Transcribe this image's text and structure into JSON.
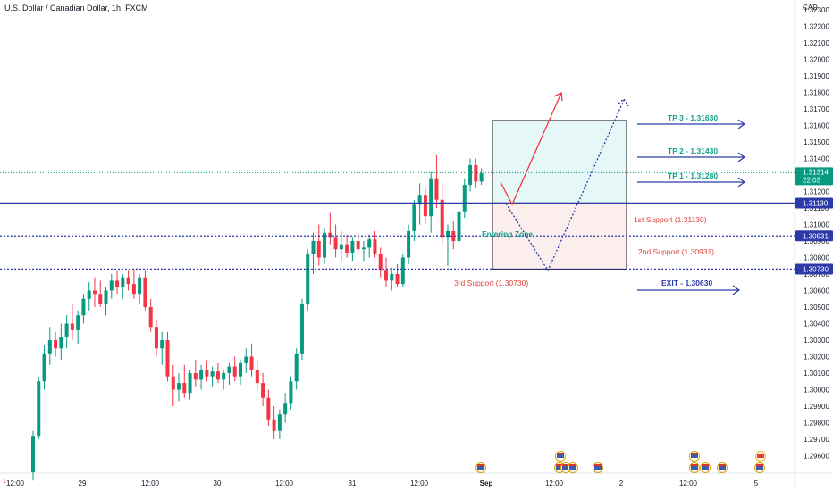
{
  "header": {
    "title": "U.S. Dollar / Canadian Dollar, 1h, FXCM",
    "currency": "CAD"
  },
  "chart_data": {
    "type": "candlestick",
    "title": "U.S. Dollar / Canadian Dollar, 1h, FXCM",
    "ylim": [
      1.2955,
      1.3235
    ],
    "y_ticks": [
      "1.29600",
      "1.29700",
      "1.29800",
      "1.29900",
      "1.30000",
      "1.30100",
      "1.30200",
      "1.30300",
      "1.30400",
      "1.30500",
      "1.30600",
      "1.30700",
      "1.30800",
      "1.30900",
      "1.31000",
      "1.31100",
      "1.31200",
      "1.31300",
      "1.31400",
      "1.31500",
      "1.31600",
      "1.31700",
      "1.31800",
      "1.31900",
      "1.32000",
      "1.32100",
      "1.32200",
      "1.32300"
    ],
    "x_ticks": [
      "12:00",
      "29",
      "12:00",
      "30",
      "12:00",
      "31",
      "12:00",
      "Sep",
      "12:00",
      "2",
      "12:00",
      "5"
    ],
    "candles": [
      [
        1.295,
        1.2975,
        1.2945,
        1.2972
      ],
      [
        1.2972,
        1.3008,
        1.297,
        1.3005
      ],
      [
        1.3005,
        1.3027,
        1.3,
        1.3022
      ],
      [
        1.3022,
        1.3038,
        1.3015,
        1.303
      ],
      [
        1.303,
        1.3035,
        1.302,
        1.3025
      ],
      [
        1.3025,
        1.304,
        1.3018,
        1.3032
      ],
      [
        1.3032,
        1.3045,
        1.3025,
        1.304
      ],
      [
        1.304,
        1.3052,
        1.303,
        1.3036
      ],
      [
        1.3036,
        1.3048,
        1.3028,
        1.3045
      ],
      [
        1.3045,
        1.3058,
        1.304,
        1.3055
      ],
      [
        1.3055,
        1.3065,
        1.3048,
        1.306
      ],
      [
        1.306,
        1.3068,
        1.305,
        1.3058
      ],
      [
        1.3058,
        1.3066,
        1.305,
        1.3052
      ],
      [
        1.3052,
        1.3062,
        1.3045,
        1.306
      ],
      [
        1.306,
        1.307,
        1.3055,
        1.3066
      ],
      [
        1.3066,
        1.3072,
        1.3058,
        1.3062
      ],
      [
        1.3062,
        1.307,
        1.3055,
        1.3068
      ],
      [
        1.3068,
        1.3072,
        1.306,
        1.3064
      ],
      [
        1.3064,
        1.3073,
        1.3055,
        1.3058
      ],
      [
        1.3058,
        1.307,
        1.3052,
        1.3068
      ],
      [
        1.3068,
        1.3072,
        1.3048,
        1.305
      ],
      [
        1.305,
        1.3055,
        1.3035,
        1.3038
      ],
      [
        1.3038,
        1.3042,
        1.302,
        1.3025
      ],
      [
        1.3025,
        1.3035,
        1.3015,
        1.303
      ],
      [
        1.303,
        1.3035,
        1.3005,
        1.3008
      ],
      [
        1.3008,
        1.3015,
        1.299,
        1.3
      ],
      [
        1.3,
        1.301,
        1.2993,
        1.3004
      ],
      [
        1.3004,
        1.3015,
        1.2995,
        1.2998
      ],
      [
        1.2998,
        1.3012,
        1.2994,
        1.301
      ],
      [
        1.301,
        1.3018,
        1.3002,
        1.3006
      ],
      [
        1.3006,
        1.3015,
        1.3,
        1.3012
      ],
      [
        1.3012,
        1.3018,
        1.3005,
        1.3008
      ],
      [
        1.3008,
        1.3014,
        1.3002,
        1.3011
      ],
      [
        1.3011,
        1.3016,
        1.3004,
        1.3006
      ],
      [
        1.3006,
        1.3012,
        1.3,
        1.301
      ],
      [
        1.301,
        1.3016,
        1.3003,
        1.3014
      ],
      [
        1.3014,
        1.302,
        1.3005,
        1.3008
      ],
      [
        1.3008,
        1.3018,
        1.3003,
        1.3016
      ],
      [
        1.3016,
        1.3025,
        1.301,
        1.302
      ],
      [
        1.302,
        1.3028,
        1.3008,
        1.3012
      ],
      [
        1.3012,
        1.3018,
        1.3,
        1.3004
      ],
      [
        1.3004,
        1.301,
        1.299,
        1.2995
      ],
      [
        1.2995,
        1.3,
        1.2978,
        1.2982
      ],
      [
        1.2982,
        1.299,
        1.297,
        1.2975
      ],
      [
        1.2975,
        1.2988,
        1.297,
        1.2985
      ],
      [
        1.2985,
        1.2998,
        1.298,
        1.2992
      ],
      [
        1.2992,
        1.3008,
        1.2988,
        1.3005
      ],
      [
        1.3005,
        1.3025,
        1.3,
        1.3022
      ],
      [
        1.3022,
        1.3055,
        1.3018,
        1.3052
      ],
      [
        1.3052,
        1.3085,
        1.3048,
        1.3082
      ],
      [
        1.3082,
        1.3095,
        1.307,
        1.309
      ],
      [
        1.309,
        1.31,
        1.3075,
        1.308
      ],
      [
        1.308,
        1.3098,
        1.3076,
        1.3095
      ],
      [
        1.3095,
        1.3107,
        1.3088,
        1.3092
      ],
      [
        1.3092,
        1.31,
        1.308,
        1.3085
      ],
      [
        1.3085,
        1.3096,
        1.3078,
        1.3088
      ],
      [
        1.3088,
        1.3094,
        1.308,
        1.3083
      ],
      [
        1.3083,
        1.3092,
        1.3078,
        1.309
      ],
      [
        1.309,
        1.3095,
        1.3082,
        1.3085
      ],
      [
        1.3085,
        1.309,
        1.3078,
        1.3086
      ],
      [
        1.3086,
        1.3094,
        1.308,
        1.3091
      ],
      [
        1.3091,
        1.3096,
        1.308,
        1.3082
      ],
      [
        1.3082,
        1.3086,
        1.3068,
        1.3072
      ],
      [
        1.3072,
        1.308,
        1.3062,
        1.3066
      ],
      [
        1.3066,
        1.3074,
        1.306,
        1.307
      ],
      [
        1.307,
        1.3076,
        1.3062,
        1.3064
      ],
      [
        1.3064,
        1.3082,
        1.3062,
        1.308
      ],
      [
        1.308,
        1.31,
        1.3076,
        1.3096
      ],
      [
        1.3096,
        1.3115,
        1.309,
        1.3112
      ],
      [
        1.3112,
        1.3125,
        1.31,
        1.3118
      ],
      [
        1.3118,
        1.3122,
        1.31,
        1.3105
      ],
      [
        1.3105,
        1.3132,
        1.3095,
        1.3128
      ],
      [
        1.3128,
        1.3142,
        1.311,
        1.3115
      ],
      [
        1.3115,
        1.3125,
        1.3088,
        1.3092
      ],
      [
        1.3092,
        1.31,
        1.3075,
        1.3096
      ],
      [
        1.3096,
        1.3102,
        1.3085,
        1.309
      ],
      [
        1.309,
        1.3112,
        1.3086,
        1.3108
      ],
      [
        1.3108,
        1.3128,
        1.3104,
        1.3124
      ],
      [
        1.3124,
        1.314,
        1.312,
        1.3136
      ],
      [
        1.3136,
        1.314,
        1.3122,
        1.3126
      ],
      [
        1.3126,
        1.3134,
        1.3124,
        1.3131
      ]
    ],
    "levels": [
      {
        "label": "1st Support (1.31130)",
        "value": 1.3113,
        "badge": "1.31130",
        "color": "#2b3aa8",
        "style": "solid"
      },
      {
        "label": "2nd Support (1.30931)",
        "value": 1.30931,
        "badge": "1.30931",
        "color": "#2b3aa8",
        "style": "dotted"
      },
      {
        "label": "3rd Support (1.30730)",
        "value": 1.3073,
        "badge": "1.30730",
        "color": "#2b3aa8",
        "style": "dotted"
      }
    ],
    "targets": [
      {
        "label": "TP 3 - 1.31630",
        "value": 1.3163,
        "color": "#12a08a"
      },
      {
        "label": "TP 2 - 1.31430",
        "value": 1.3143,
        "color": "#12a08a"
      },
      {
        "label": "TP 1 - 1.31280",
        "value": 1.3128,
        "color": "#12a08a"
      }
    ],
    "exit": {
      "label": "EXIT - 1.30630",
      "value": 1.3063,
      "color": "#2b3aa8"
    },
    "entry_zone": {
      "label": "Entering Zone",
      "top": 1.3113,
      "bottom": 1.3073,
      "profit_top": 1.3163
    },
    "current_price": {
      "value": "1.31314",
      "countdown": "22:03",
      "color": "#089981"
    },
    "colors": {
      "up": "#089981",
      "down": "#f23645",
      "level": "#2b3aa8",
      "target": "#12a08a",
      "support_text": "#e0443a"
    }
  }
}
